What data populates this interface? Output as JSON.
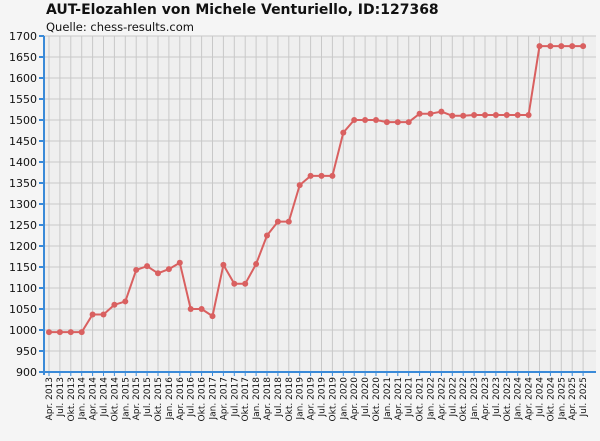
{
  "chart_data": {
    "type": "line",
    "title": "AUT-Elozahlen von Michele Venturiello, ID:127368",
    "subtitle": "Quelle: chess-results.com",
    "xlabel": "",
    "ylabel": "",
    "ylim": [
      900,
      1700
    ],
    "yticks": [
      900,
      950,
      1000,
      1050,
      1100,
      1150,
      1200,
      1250,
      1300,
      1350,
      1400,
      1450,
      1500,
      1550,
      1600,
      1650,
      1700
    ],
    "grid": true,
    "colors": {
      "line": "#d96060",
      "grid": "#c8c8c8",
      "axis": "#3a8ad8",
      "plot_bg": "#efefef"
    },
    "x": [
      "Apr. 2013",
      "Jul. 2013",
      "Okt. 2013",
      "Jan. 2014",
      "Apr. 2014",
      "Jul. 2014",
      "Okt. 2014",
      "Jan. 2015",
      "Apr. 2015",
      "Jul. 2015",
      "Okt. 2015",
      "Jan. 2016",
      "Apr. 2016",
      "Jul. 2016",
      "Okt. 2016",
      "Jan. 2017",
      "Apr. 2017",
      "Jul. 2017",
      "Okt. 2017",
      "Jan. 2018",
      "Apr. 2018",
      "Jul. 2018",
      "Okt. 2018",
      "Jan. 2019",
      "Apr. 2019",
      "Jul. 2019",
      "Okt. 2019",
      "Jan. 2020",
      "Apr. 2020",
      "Jul. 2020",
      "Okt. 2020",
      "Jan. 2021",
      "Apr. 2021",
      "Jul. 2021",
      "Okt. 2021",
      "Jan. 2022",
      "Apr. 2022",
      "Jul. 2022",
      "Okt. 2022",
      "Jan. 2023",
      "Apr. 2023",
      "Jul. 2023",
      "Okt. 2023",
      "Jan. 2024",
      "Apr. 2024",
      "Jul. 2024",
      "Okt. 2024",
      "Jan. 2025",
      "Apr. 2025",
      "Jul. 2025"
    ],
    "series": [
      {
        "values": [
          995,
          995,
          995,
          995,
          1037,
          1037,
          1060,
          1068,
          1143,
          1152,
          1135,
          1145,
          1160,
          1050,
          1050,
          1033,
          1155,
          1110,
          1110,
          1157,
          1225,
          1258,
          1258,
          1345,
          1367,
          1367,
          1367,
          1470,
          1500,
          1500,
          1500,
          1495,
          1495,
          1495,
          1515,
          1515,
          1520,
          1510,
          1510,
          1512,
          1512,
          1512,
          1512,
          1512,
          1512,
          1676,
          1676,
          1676,
          1676,
          1676
        ]
      }
    ]
  }
}
